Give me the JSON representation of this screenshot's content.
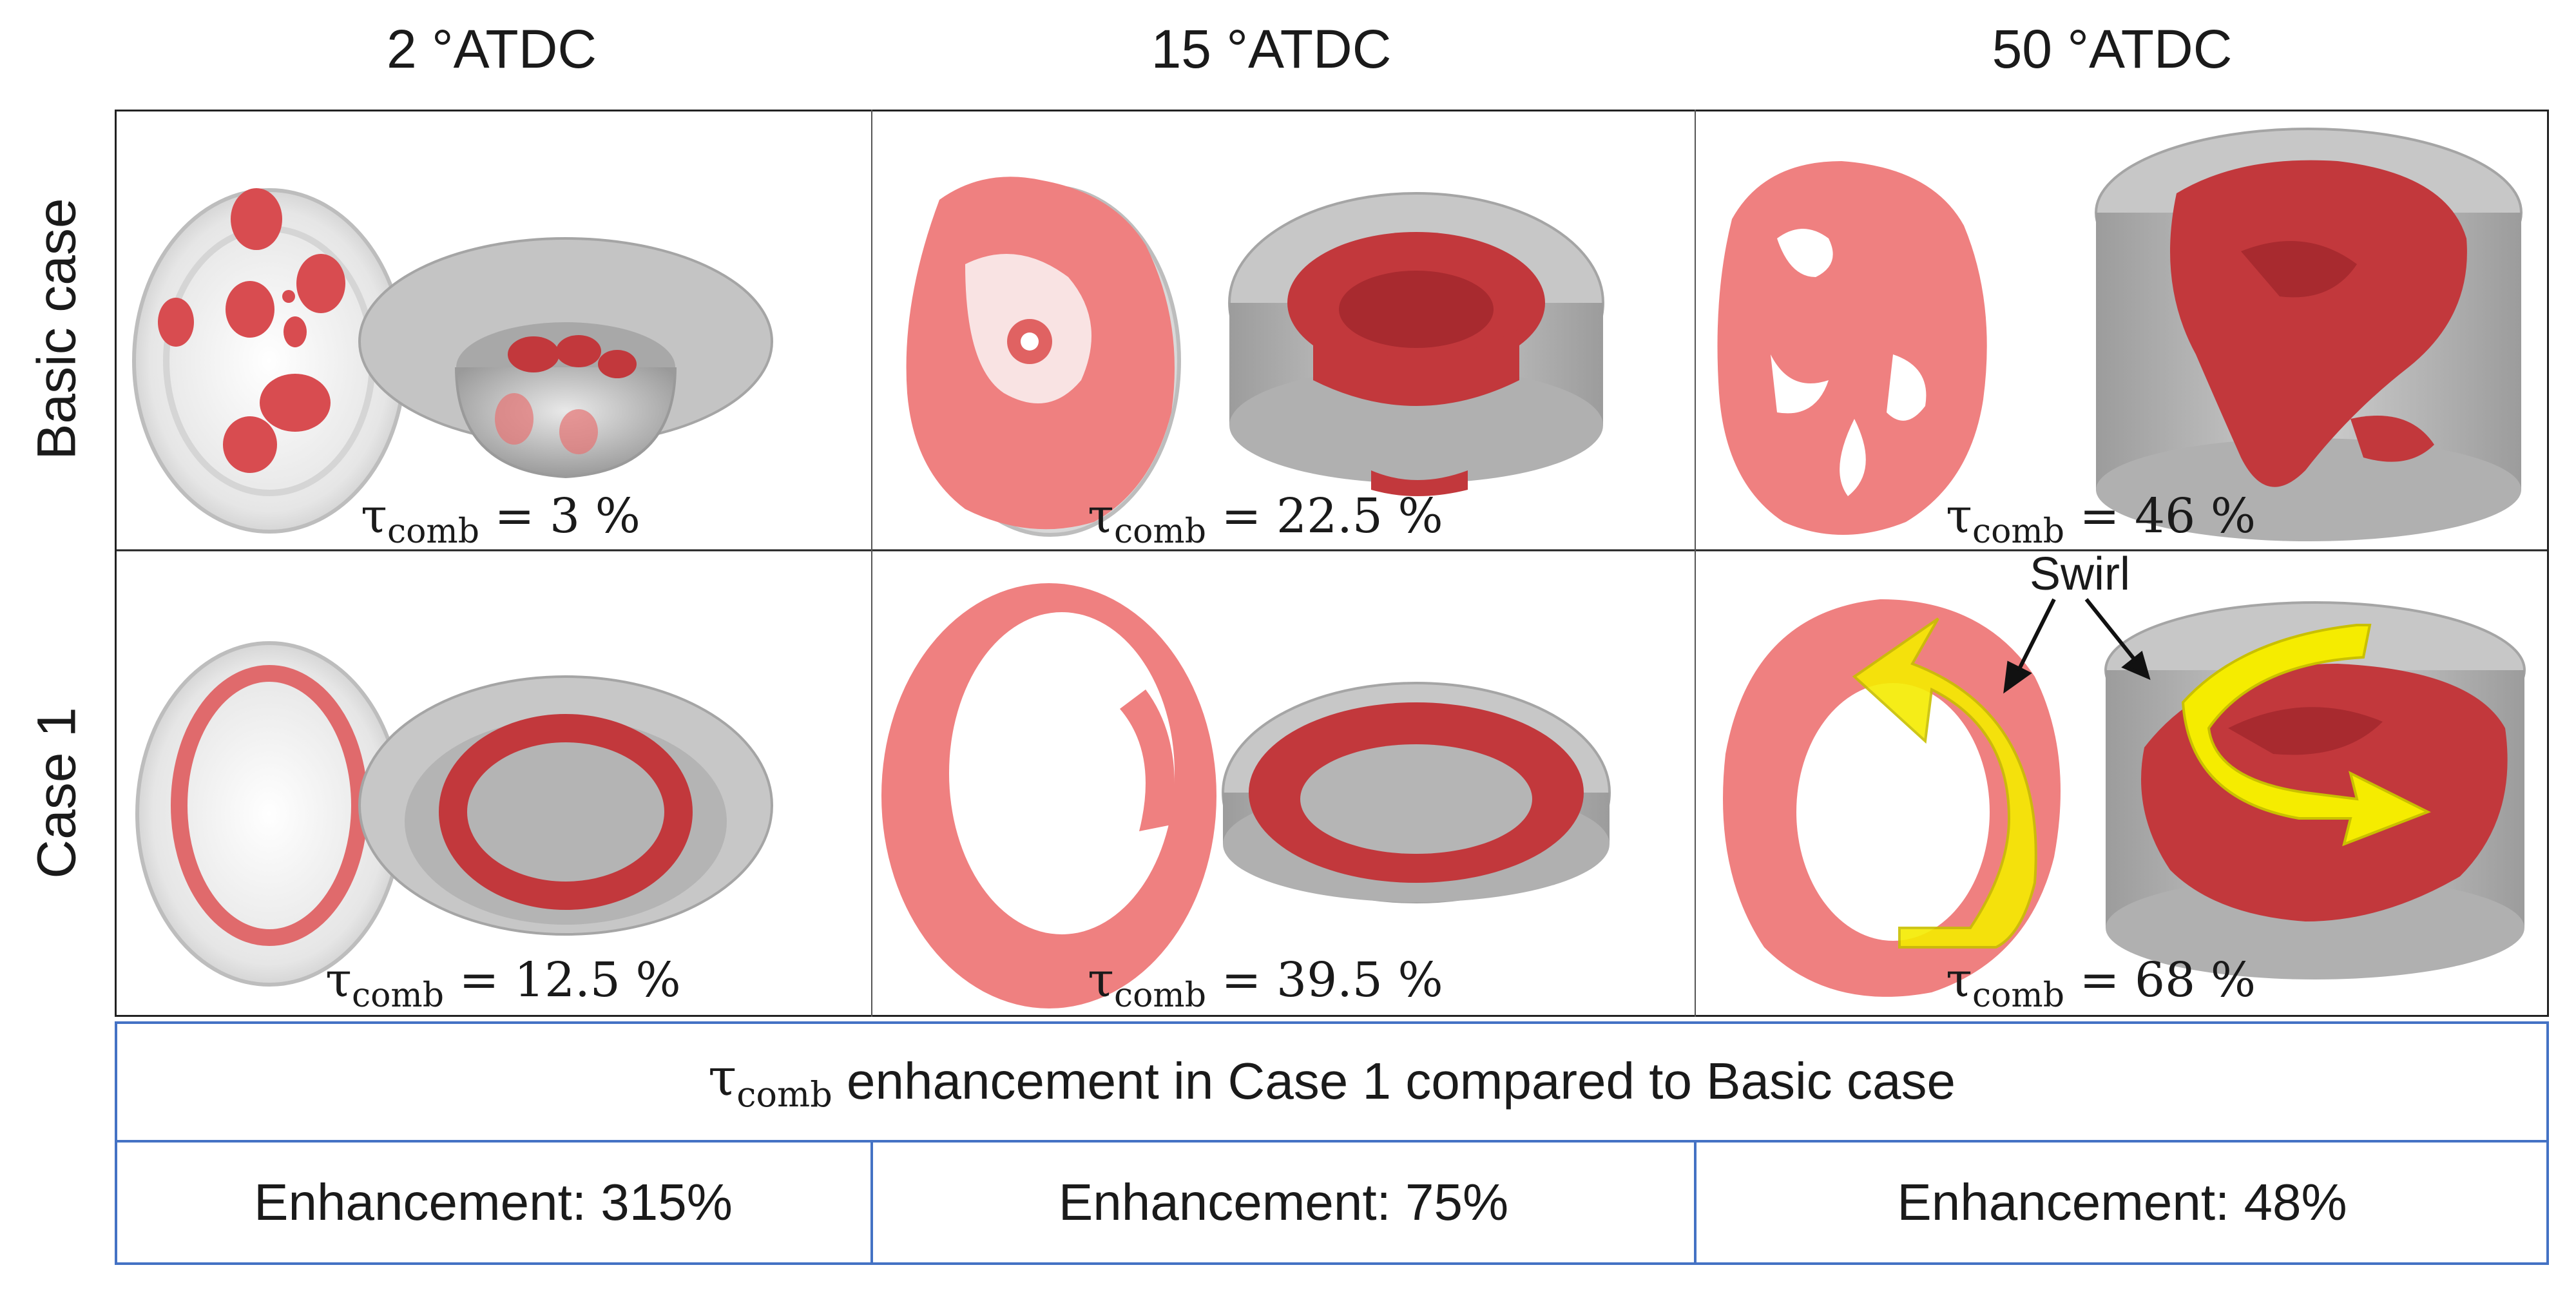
{
  "columns": [
    "2 °ATDC",
    "15 °ATDC",
    "50 °ATDC"
  ],
  "rows": [
    "Basic case",
    "Case 1"
  ],
  "tau_symbol": "τ",
  "tau_subscript": "comb",
  "basic_values": [
    "= 3 %",
    "= 22.5 %",
    "= 46 %"
  ],
  "case1_values": [
    "= 12.5 %",
    "= 39.5 %",
    "= 68 %"
  ],
  "annotation": "Swirl",
  "summary_title_rest": "enhancement in Case 1 compared to Basic case",
  "enhancements": [
    "Enhancement: 315%",
    "Enhancement: 75%",
    "Enhancement: 48%"
  ],
  "colors": {
    "flame_dark": "#c2383c",
    "flame_light": "#ef8080",
    "chamber_gray": "#b5b5b5",
    "swirl_arrow": "#f5ec00",
    "table_border": "#4472c4"
  }
}
